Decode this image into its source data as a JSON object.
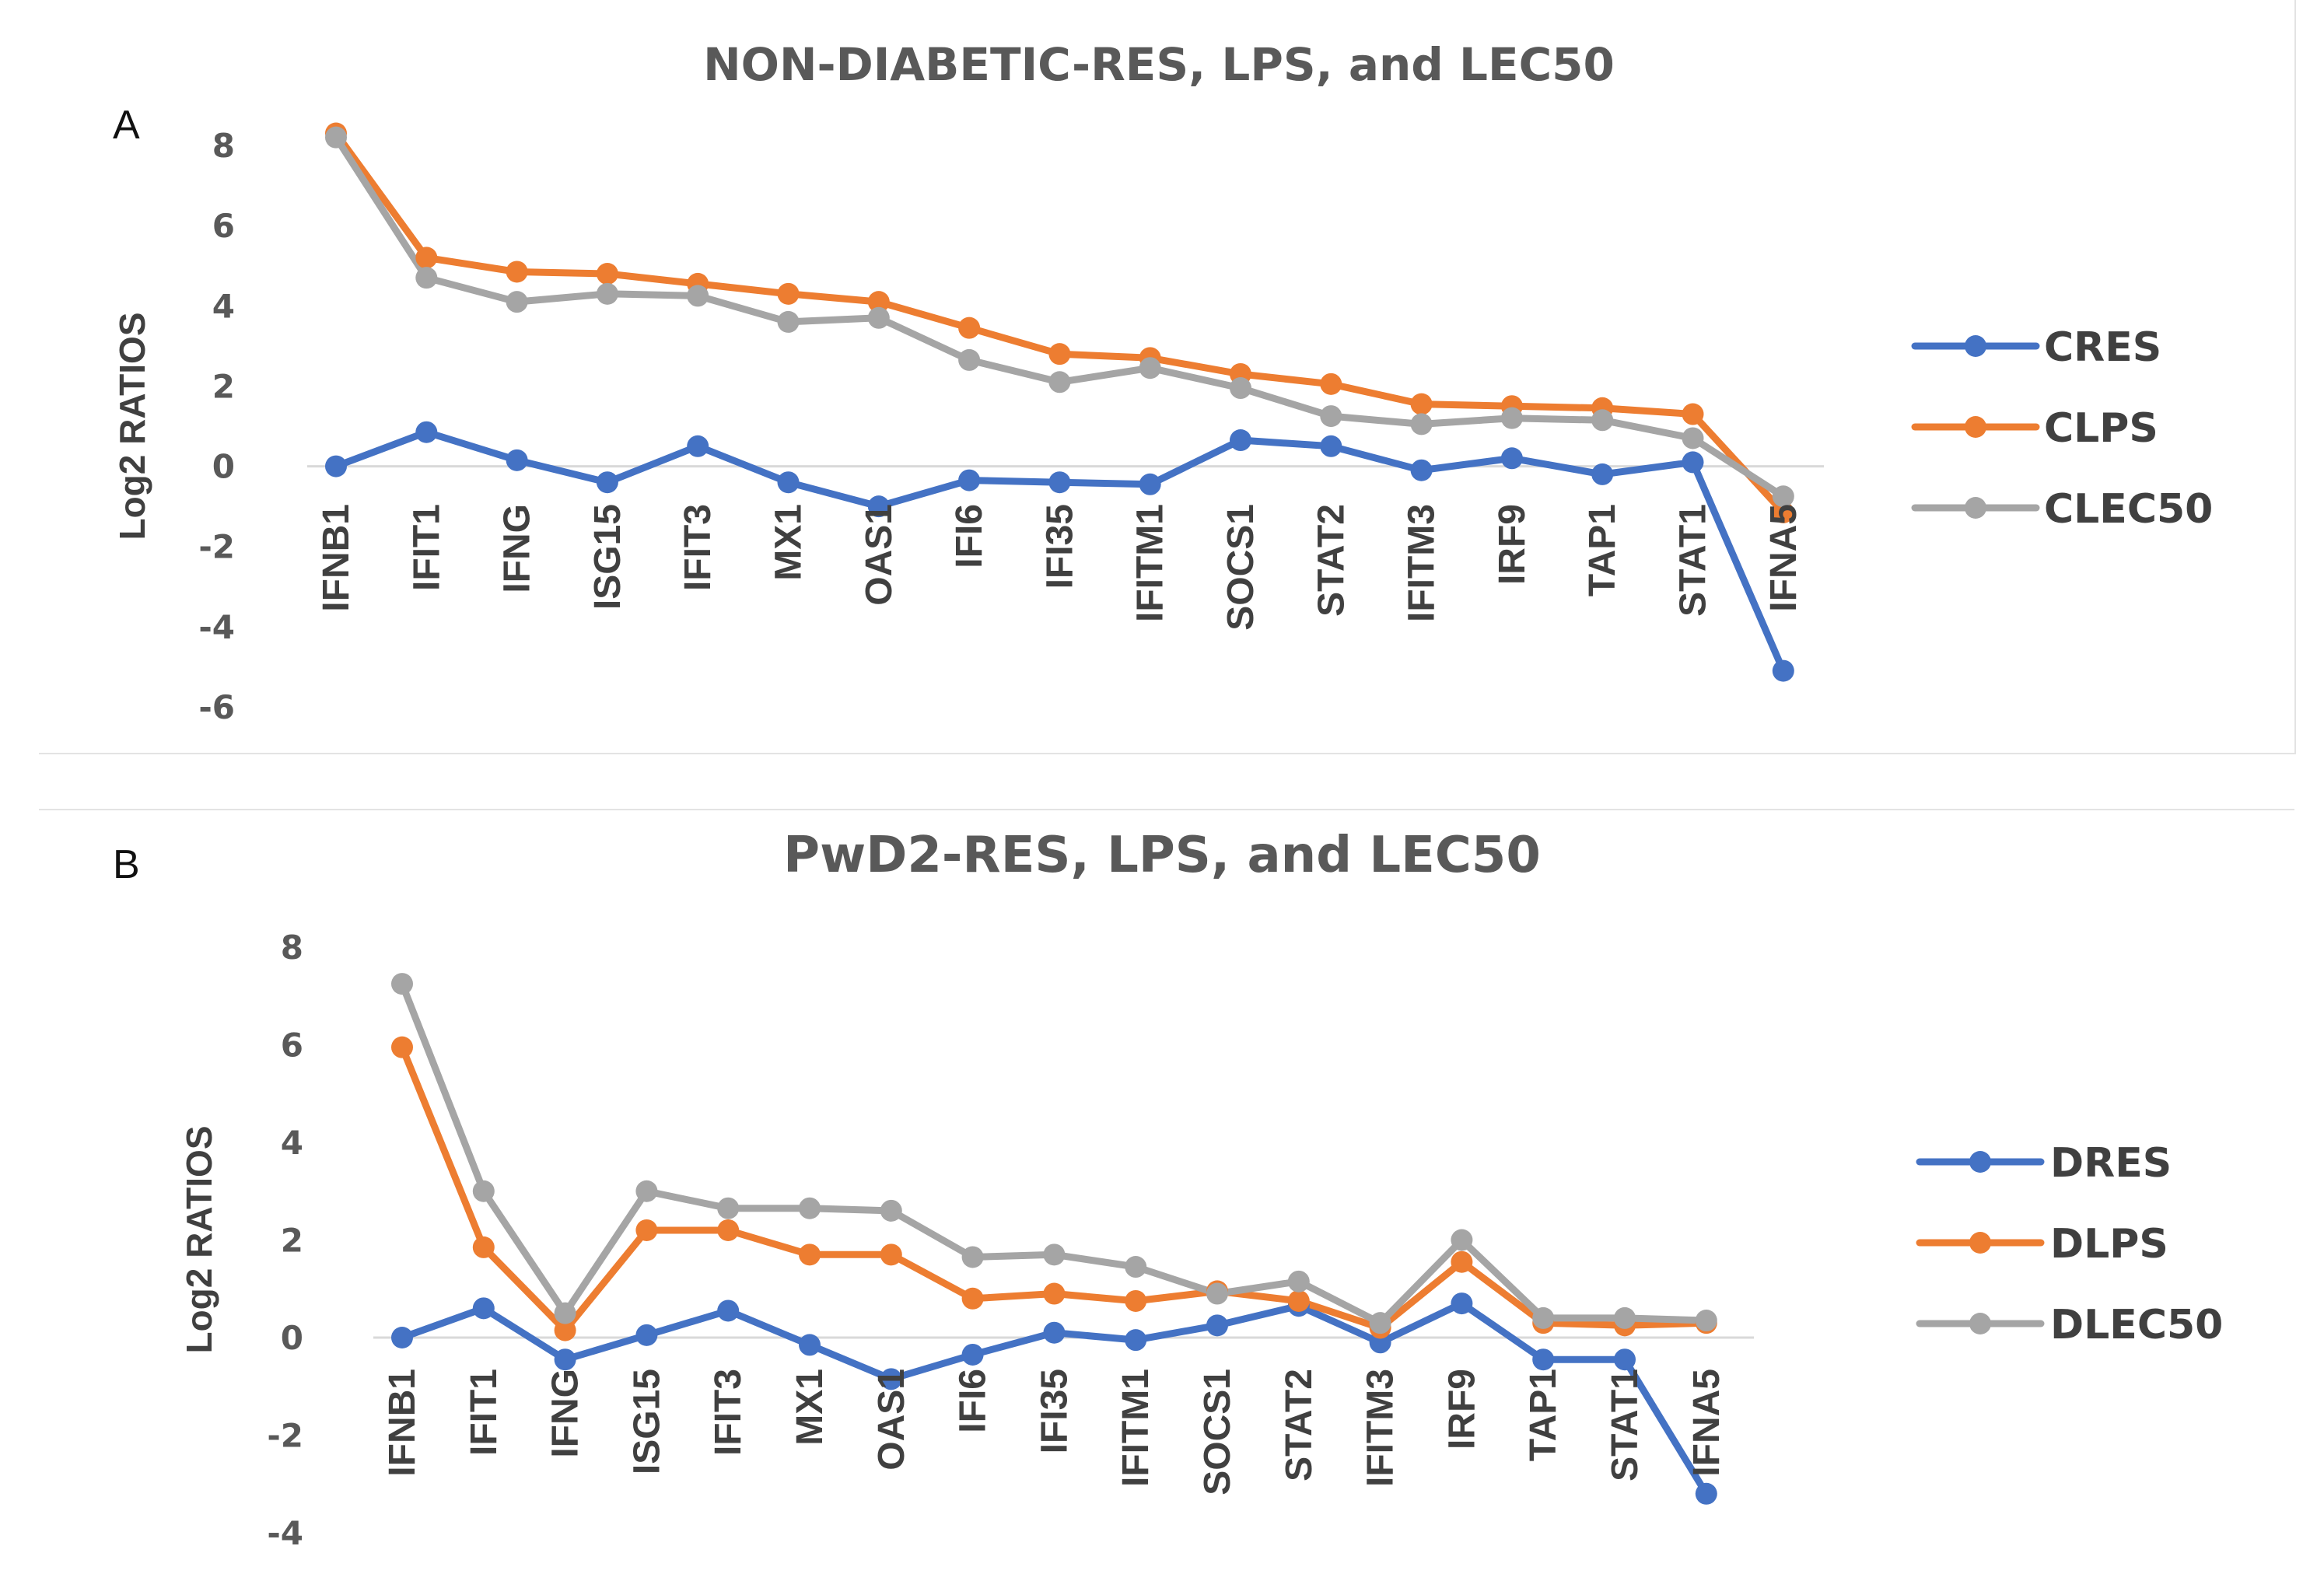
{
  "chart_data": [
    {
      "type": "line",
      "panel_letter": "A",
      "title": "NON-DIABETIC-RES, LPS, and LEC50",
      "xlabel": "",
      "ylabel": "Log2 RATIOS",
      "ylim": [
        -6,
        8
      ],
      "yticks": [
        8,
        6,
        4,
        2,
        0,
        -2,
        -4,
        -6
      ],
      "grid": false,
      "legend_position": "right",
      "categories": [
        "IFNB1",
        "IFIT1",
        "IFNG",
        "ISG15",
        "IFIT3",
        "MX1",
        "OAS1",
        "IFI6",
        "IFI35",
        "IFITM1",
        "SOCS1",
        "STAT2",
        "IFITM3",
        "IRF9",
        "TAP1",
        "STAT1",
        "IFNA5"
      ],
      "series": [
        {
          "name": "CRES",
          "color": "#4472C4",
          "values": [
            0.0,
            0.85,
            0.15,
            -0.4,
            0.5,
            -0.4,
            -1.0,
            -0.35,
            -0.4,
            -0.45,
            0.65,
            0.5,
            -0.1,
            0.2,
            -0.2,
            0.1,
            -5.1
          ]
        },
        {
          "name": "CLPS",
          "color": "#ED7D31",
          "values": [
            8.3,
            5.2,
            4.85,
            4.8,
            4.55,
            4.3,
            4.1,
            3.45,
            2.8,
            2.7,
            2.3,
            2.05,
            1.55,
            1.5,
            1.45,
            1.3,
            -1.15
          ]
        },
        {
          "name": "CLEC50",
          "color": "#A5A5A5",
          "values": [
            8.2,
            4.7,
            4.1,
            4.3,
            4.25,
            3.6,
            3.7,
            2.65,
            2.1,
            2.45,
            1.95,
            1.25,
            1.05,
            1.2,
            1.15,
            0.7,
            -0.75
          ]
        }
      ]
    },
    {
      "type": "line",
      "panel_letter": "B",
      "title": "PwD2-RES, LPS, and LEC50",
      "xlabel": "",
      "ylabel": "Log2 RATIOS",
      "ylim": [
        -4,
        8
      ],
      "yticks": [
        8,
        6,
        4,
        2,
        0,
        -2,
        -4
      ],
      "grid": false,
      "legend_position": "right",
      "categories": [
        "IFNB1",
        "IFIT1",
        "IFNG",
        "ISG15",
        "IFIT3",
        "MX1",
        "OAS1",
        "IFI6",
        "IFI35",
        "IFITM1",
        "SOCS1",
        "STAT2",
        "IFITM3",
        "IRF9",
        "TAP1",
        "STAT1",
        "IFNA5"
      ],
      "series": [
        {
          "name": "DRES",
          "color": "#4472C4",
          "values": [
            0.0,
            0.6,
            -0.45,
            0.05,
            0.55,
            -0.15,
            -0.85,
            -0.35,
            0.1,
            -0.05,
            0.25,
            0.65,
            -0.1,
            0.7,
            -0.45,
            -0.45,
            -3.2
          ]
        },
        {
          "name": "DLPS",
          "color": "#ED7D31",
          "values": [
            5.95,
            1.85,
            0.15,
            2.2,
            2.2,
            1.7,
            1.7,
            0.8,
            0.9,
            0.75,
            0.95,
            0.75,
            0.2,
            1.55,
            0.3,
            0.25,
            0.3
          ]
        },
        {
          "name": "DLEC50",
          "color": "#A5A5A5",
          "values": [
            7.25,
            3.0,
            0.5,
            3.0,
            2.65,
            2.65,
            2.6,
            1.65,
            1.7,
            1.45,
            0.9,
            1.15,
            0.3,
            2.0,
            0.4,
            0.4,
            0.35
          ]
        }
      ]
    }
  ]
}
